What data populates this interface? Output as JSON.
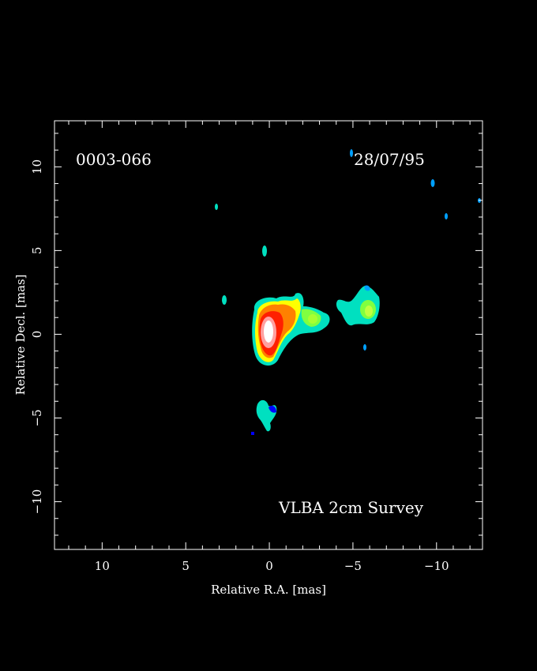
{
  "chart_data": {
    "type": "heatmap",
    "source_name": "0003-066",
    "date": "28/07/95",
    "survey": "VLBA 2cm Survey",
    "xlabel": "Relative R.A. [mas]",
    "ylabel": "Relative Decl. [mas]",
    "xlim": [
      12.85,
      -12.75
    ],
    "ylim": [
      -12.85,
      12.75
    ],
    "x_ticks": [
      10,
      5,
      0,
      -5,
      -10
    ],
    "y_ticks": [
      10,
      5,
      0,
      -5,
      -10
    ],
    "x_tick_labels": [
      "10",
      "5",
      "0",
      "−5",
      "−10"
    ],
    "y_tick_labels": [
      "10",
      "5",
      "0",
      "−5",
      "−10"
    ],
    "colormap": [
      "#0000ff",
      "#00a0ff",
      "#00e0c0",
      "#80ff40",
      "#ffff00",
      "#ff8000",
      "#ff2000",
      "#ffa0a0",
      "#ffffff"
    ],
    "background": "#000000",
    "components": [
      {
        "x": 0.0,
        "y": 0.3,
        "level": 9
      },
      {
        "x": 0.8,
        "y": 0.5,
        "level": 6
      },
      {
        "x": -1.5,
        "y": 1.0,
        "level": 6
      },
      {
        "x": -2.8,
        "y": 0.8,
        "level": 4
      },
      {
        "x": -6.0,
        "y": 1.3,
        "level": 4
      },
      {
        "x": 0.1,
        "y": -4.8,
        "level": 3
      },
      {
        "x": 0.2,
        "y": 5.0,
        "level": 2
      },
      {
        "x": 2.6,
        "y": 2.0,
        "level": 2
      },
      {
        "x": 3.1,
        "y": 7.6,
        "level": 2
      },
      {
        "x": -5.0,
        "y": 10.8,
        "level": 2
      },
      {
        "x": -9.8,
        "y": 9.0,
        "level": 2
      },
      {
        "x": -10.7,
        "y": 7.0,
        "level": 2
      },
      {
        "x": -12.5,
        "y": 8.0,
        "level": 2
      },
      {
        "x": -5.8,
        "y": -0.8,
        "level": 2
      },
      {
        "x": 0.9,
        "y": -5.9,
        "level": 1
      }
    ]
  }
}
